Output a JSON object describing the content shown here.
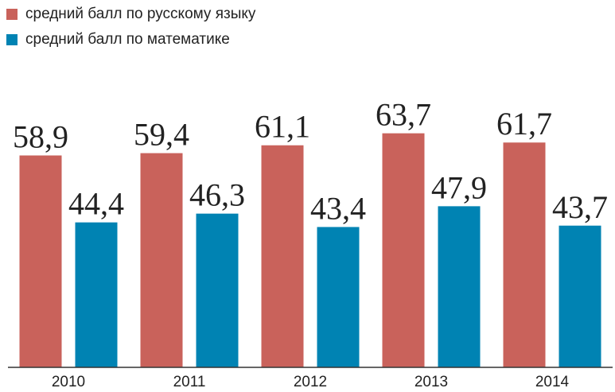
{
  "chart_data": {
    "type": "bar",
    "categories": [
      "2010",
      "2011",
      "2012",
      "2013",
      "2014"
    ],
    "series": [
      {
        "name": "средний балл по русскому языку",
        "color": "#c9625b",
        "values": [
          58.9,
          59.4,
          61.1,
          63.7,
          61.7
        ],
        "value_labels": [
          "58,9",
          "59,4",
          "61,1",
          "63,7",
          "61,7"
        ]
      },
      {
        "name": "средний балл по математике",
        "color": "#0083b3",
        "values": [
          44.4,
          46.3,
          43.4,
          47.9,
          43.7
        ],
        "value_labels": [
          "44,4",
          "46,3",
          "43,4",
          "47,9",
          "43,7"
        ]
      }
    ],
    "ylim": [
      13,
      80
    ],
    "legend": "top-left"
  }
}
